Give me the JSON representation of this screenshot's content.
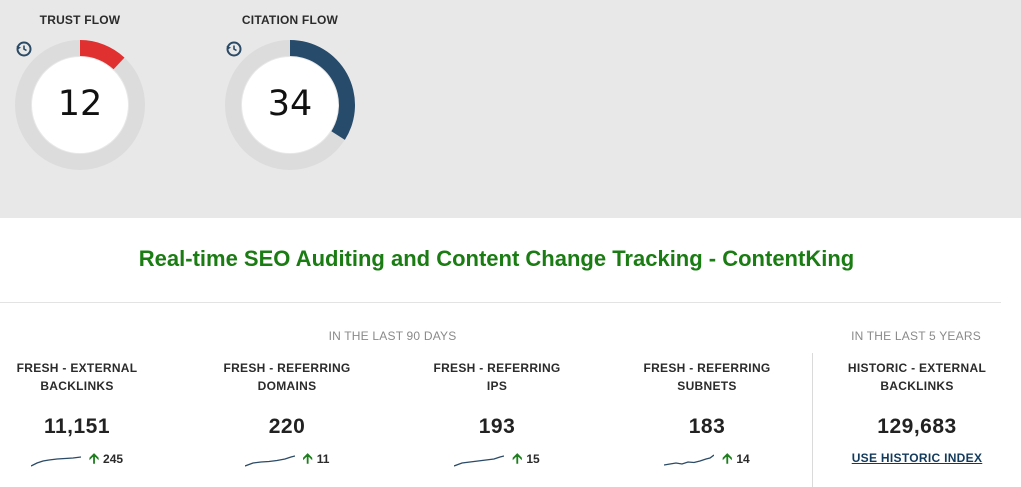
{
  "gauges": {
    "trust_flow": {
      "label": "TRUST FLOW",
      "value": "12",
      "score": 12,
      "color": "#e03030"
    },
    "citation_flow": {
      "label": "CITATION FLOW",
      "value": "34",
      "score": 34,
      "color": "#274b6b"
    }
  },
  "site": {
    "title": "Real-time SEO Auditing and Content Change Tracking - ContentKing"
  },
  "periods": {
    "last_90_days": "IN THE LAST 90 DAYS",
    "last_5_years": "IN THE LAST 5 YEARS"
  },
  "metrics": [
    {
      "label_line1": "FRESH - EXTERNAL",
      "label_line2": "BACKLINKS",
      "value": "11,151",
      "delta": "245"
    },
    {
      "label_line1": "FRESH - REFERRING",
      "label_line2": "DOMAINS",
      "value": "220",
      "delta": "11"
    },
    {
      "label_line1": "FRESH - REFERRING",
      "label_line2": "IPS",
      "value": "193",
      "delta": "15"
    },
    {
      "label_line1": "FRESH - REFERRING",
      "label_line2": "SUBNETS",
      "value": "183",
      "delta": "14"
    }
  ],
  "historic": {
    "label_line1": "HISTORIC - EXTERNAL",
    "label_line2": "BACKLINKS",
    "value": "129,683",
    "link": "USE HISTORIC INDEX"
  },
  "icons": {
    "history": "history-icon",
    "trend_up": "arrow-up-icon",
    "sparkline": "sparkline-icon"
  },
  "colors": {
    "title_green": "#1a7c13",
    "trend_green": "#1e7e1e",
    "sparkline": "#2a4a66"
  }
}
